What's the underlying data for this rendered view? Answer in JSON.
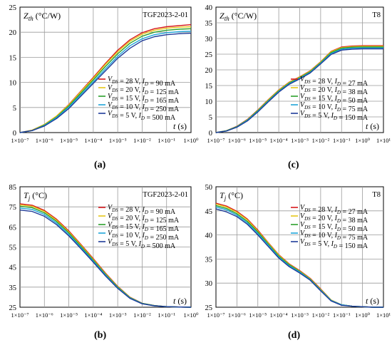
{
  "chart_data": [
    {
      "panel": "(a)",
      "type": "line",
      "tag": "TGF2023-2-01",
      "y_label": {
        "main": "Z",
        "sub": "th",
        "unit": " (°C/W)"
      },
      "x_label": "t (s)",
      "x_scale": "log",
      "xlim_exp": [
        -7,
        0
      ],
      "x_ticks": [
        "1×10⁻⁷",
        "1×10⁻⁶",
        "1×10⁻⁵",
        "1×10⁻⁴",
        "1×10⁻³",
        "1×10⁻²",
        "1×10⁻¹",
        "1×10⁰"
      ],
      "ylim": [
        0,
        25
      ],
      "y_ticks": [
        0,
        5,
        10,
        15,
        20,
        25
      ],
      "grid": true,
      "legend_position": "lower-right",
      "series": [
        {
          "legend": "V_DS = 28 V, I_D = 90 mA",
          "color": "#d7191c",
          "t": [
            -7,
            -6.5,
            -6,
            -5.5,
            -5,
            -4.5,
            -4,
            -3.5,
            -3,
            -2.5,
            -2,
            -1.5,
            -1,
            -0.5,
            0
          ],
          "y": [
            0,
            0.5,
            1.6,
            3.3,
            5.6,
            8.3,
            11.0,
            13.8,
            16.4,
            18.5,
            19.9,
            20.7,
            21.1,
            21.3,
            21.5
          ]
        },
        {
          "legend": "V_DS = 20 V, I_D = 125 mA",
          "color": "#e6c619",
          "t": [
            -7,
            -6.5,
            -6,
            -5.5,
            -5,
            -4.5,
            -4,
            -3.5,
            -3,
            -2.5,
            -2,
            -1.5,
            -1,
            -0.5,
            0
          ],
          "y": [
            0,
            0.5,
            1.6,
            3.3,
            5.5,
            8.2,
            10.8,
            13.6,
            16.1,
            18.2,
            19.6,
            20.4,
            20.8,
            21.0,
            21.1
          ]
        },
        {
          "legend": "V_DS = 15 V, I_D = 165 mA",
          "color": "#2ca02c",
          "t": [
            -7,
            -6.5,
            -6,
            -5.5,
            -5,
            -4.5,
            -4,
            -3.5,
            -3,
            -2.5,
            -2,
            -1.5,
            -1,
            -0.5,
            0
          ],
          "y": [
            0,
            0.4,
            1.5,
            3.1,
            5.3,
            7.9,
            10.5,
            13.2,
            15.7,
            17.8,
            19.2,
            20.0,
            20.4,
            20.6,
            20.7
          ]
        },
        {
          "legend": "V_DS = 10 V, I_D = 250 mA",
          "color": "#1fa5d8",
          "t": [
            -7,
            -6.5,
            -6,
            -5.5,
            -5,
            -4.5,
            -4,
            -3.5,
            -3,
            -2.5,
            -2,
            -1.5,
            -1,
            -0.5,
            0
          ],
          "y": [
            0,
            0.4,
            1.4,
            3.0,
            5.1,
            7.6,
            10.1,
            12.7,
            15.2,
            17.3,
            18.7,
            19.5,
            19.9,
            20.1,
            20.2
          ]
        },
        {
          "legend": "V_DS = 5 V, I_D = 500 mA",
          "color": "#1f3c99",
          "t": [
            -7,
            -6.5,
            -6,
            -5.5,
            -5,
            -4.5,
            -4,
            -3.5,
            -3,
            -2.5,
            -2,
            -1.5,
            -1,
            -0.5,
            0
          ],
          "y": [
            0,
            0.4,
            1.3,
            2.8,
            4.8,
            7.3,
            9.8,
            12.3,
            14.8,
            16.8,
            18.3,
            19.1,
            19.5,
            19.7,
            19.8
          ]
        }
      ]
    },
    {
      "panel": "(c)",
      "type": "line",
      "tag": "T8",
      "y_label": {
        "main": "Z",
        "sub": "th",
        "unit": " (°C/W)"
      },
      "x_label": "t (s)",
      "x_scale": "log",
      "xlim_exp": [
        -7,
        1
      ],
      "x_ticks": [
        "1×10⁻⁷",
        "1×10⁻⁶",
        "1×10⁻⁵",
        "1×10⁻⁴",
        "1×10⁻³",
        "1×10⁻²",
        "1×10⁻¹",
        "1×10⁰",
        "1×10¹"
      ],
      "ylim": [
        0,
        40
      ],
      "y_ticks": [
        0,
        5,
        10,
        15,
        20,
        25,
        30,
        35,
        40
      ],
      "grid": true,
      "legend_position": "lower-right",
      "series": [
        {
          "legend": "V_DS = 28 V, I_D = 27 mA",
          "color": "#d7191c",
          "t": [
            -7,
            -6.5,
            -6,
            -5.5,
            -5,
            -4.5,
            -4,
            -3.5,
            -3,
            -2.5,
            -2,
            -1.5,
            -1,
            -0.5,
            0,
            0.5,
            1
          ],
          "y": [
            0,
            0.6,
            2.0,
            4.2,
            7.2,
            10.5,
            13.6,
            16.1,
            17.8,
            19.7,
            22.6,
            25.9,
            27.3,
            27.6,
            27.7,
            27.7,
            27.7
          ]
        },
        {
          "legend": "V_DS = 20 V, I_D = 38 mA",
          "color": "#e6c619",
          "t": [
            -7,
            -6.5,
            -6,
            -5.5,
            -5,
            -4.5,
            -4,
            -3.5,
            -3,
            -2.5,
            -2,
            -1.5,
            -1,
            -0.5,
            0,
            0.5,
            1
          ],
          "y": [
            0,
            0.6,
            1.9,
            4.1,
            7.1,
            10.4,
            13.5,
            16.0,
            17.7,
            19.6,
            22.5,
            25.8,
            27.1,
            27.4,
            27.5,
            27.5,
            27.5
          ]
        },
        {
          "legend": "V_DS = 15 V, I_D = 50 mA",
          "color": "#2ca02c",
          "t": [
            -7,
            -6.5,
            -6,
            -5.5,
            -5,
            -4.5,
            -4,
            -3.5,
            -3,
            -2.5,
            -2,
            -1.5,
            -1,
            -0.5,
            0,
            0.5,
            1
          ],
          "y": [
            0,
            0.6,
            1.9,
            4.0,
            7.0,
            10.2,
            13.3,
            15.8,
            17.5,
            19.4,
            22.3,
            25.5,
            26.9,
            27.2,
            27.3,
            27.3,
            27.3
          ]
        },
        {
          "legend": "V_DS = 10 V, I_D = 75 mA",
          "color": "#1fa5d8",
          "t": [
            -7,
            -6.5,
            -6,
            -5.5,
            -5,
            -4.5,
            -4,
            -3.5,
            -3,
            -2.5,
            -2,
            -1.5,
            -1,
            -0.5,
            0,
            0.5,
            1
          ],
          "y": [
            0,
            0.5,
            1.8,
            3.9,
            6.8,
            10.0,
            13.1,
            15.6,
            17.3,
            19.2,
            22.1,
            25.2,
            26.6,
            26.9,
            27.0,
            27.0,
            27.0
          ]
        },
        {
          "legend": "V_DS = 5 V, I_D = 150 mA",
          "color": "#1f3c99",
          "t": [
            -7,
            -6.5,
            -6,
            -5.5,
            -5,
            -4.5,
            -4,
            -3.5,
            -3,
            -2.5,
            -2,
            -1.5,
            -1,
            -0.5,
            0,
            0.5,
            1
          ],
          "y": [
            0,
            0.5,
            1.7,
            3.7,
            6.6,
            9.8,
            12.9,
            15.4,
            17.1,
            19.0,
            21.9,
            24.9,
            26.3,
            26.6,
            26.7,
            26.7,
            26.7
          ]
        }
      ]
    },
    {
      "panel": "(b)",
      "type": "line",
      "tag": "TGF2023-2-01",
      "y_label": {
        "main": "T",
        "sub": "j",
        "unit": " (°C)"
      },
      "x_label": "t (s)",
      "x_scale": "log",
      "xlim_exp": [
        -7,
        0
      ],
      "x_ticks": [
        "1×10⁻⁷",
        "1×10⁻⁶",
        "1×10⁻⁵",
        "1×10⁻⁴",
        "1×10⁻³",
        "1×10⁻²",
        "1×10⁻¹",
        "1×10⁰"
      ],
      "ylim": [
        25,
        85
      ],
      "y_ticks": [
        25,
        35,
        45,
        55,
        65,
        75,
        85
      ],
      "grid": true,
      "legend_position": "upper-right",
      "series": [
        {
          "legend": "V_DS = 28 V, I_D = 90 mA",
          "color": "#d7191c",
          "t": [
            -7,
            -6.5,
            -6,
            -5.5,
            -5,
            -4.5,
            -4,
            -3.5,
            -3,
            -2.5,
            -2,
            -1.5,
            -1,
            -0.5,
            0
          ],
          "y": [
            76.5,
            75.8,
            73.2,
            68.8,
            63.0,
            56.2,
            49.2,
            42.0,
            35.4,
            30.0,
            27.0,
            25.8,
            25.3,
            25.1,
            25.0
          ]
        },
        {
          "legend": "V_DS = 20 V, I_D = 125 mA",
          "color": "#e6c619",
          "t": [
            -7,
            -6.5,
            -6,
            -5.5,
            -5,
            -4.5,
            -4,
            -3.5,
            -3,
            -2.5,
            -2,
            -1.5,
            -1,
            -0.5,
            0
          ],
          "y": [
            76.0,
            75.3,
            72.7,
            68.3,
            62.5,
            55.8,
            48.8,
            41.7,
            35.2,
            29.9,
            26.9,
            25.8,
            25.3,
            25.1,
            25.0
          ]
        },
        {
          "legend": "V_DS = 15 V, I_D = 165 mA",
          "color": "#2ca02c",
          "t": [
            -7,
            -6.5,
            -6,
            -5.5,
            -5,
            -4.5,
            -4,
            -3.5,
            -3,
            -2.5,
            -2,
            -1.5,
            -1,
            -0.5,
            0
          ],
          "y": [
            75.3,
            74.6,
            72.0,
            67.7,
            62.0,
            55.3,
            48.4,
            41.4,
            35.0,
            29.8,
            26.9,
            25.8,
            25.3,
            25.1,
            25.0
          ]
        },
        {
          "legend": "V_DS = 10 V, I_D = 250 mA",
          "color": "#1fa5d8",
          "t": [
            -7,
            -6.5,
            -6,
            -5.5,
            -5,
            -4.5,
            -4,
            -3.5,
            -3,
            -2.5,
            -2,
            -1.5,
            -1,
            -0.5,
            0
          ],
          "y": [
            74.4,
            73.7,
            71.2,
            66.9,
            61.2,
            54.7,
            47.9,
            41.0,
            34.7,
            29.6,
            26.8,
            25.7,
            25.3,
            25.1,
            25.0
          ]
        },
        {
          "legend": "V_DS = 5 V, I_D = 500 mA",
          "color": "#1f3c99",
          "t": [
            -7,
            -6.5,
            -6,
            -5.5,
            -5,
            -4.5,
            -4,
            -3.5,
            -3,
            -2.5,
            -2,
            -1.5,
            -1,
            -0.5,
            0
          ],
          "y": [
            73.4,
            72.7,
            70.3,
            66.1,
            60.5,
            54.1,
            47.4,
            40.6,
            34.4,
            29.4,
            26.7,
            25.7,
            25.3,
            25.1,
            25.0
          ]
        }
      ]
    },
    {
      "panel": "(d)",
      "type": "line",
      "tag": "T8",
      "y_label": {
        "main": "T",
        "sub": "j",
        "unit": " (°C)"
      },
      "x_label": "t (s)",
      "x_scale": "log",
      "xlim_exp": [
        -7,
        1
      ],
      "x_ticks": [
        "1×10⁻⁷",
        "1×10⁻⁶",
        "1×10⁻⁵",
        "1×10⁻⁴",
        "1×10⁻³",
        "1×10⁻²",
        "1×10⁻¹",
        "1×10⁰",
        "1×10¹"
      ],
      "ylim": [
        25,
        50
      ],
      "y_ticks": [
        25,
        30,
        35,
        40,
        45,
        50
      ],
      "grid": true,
      "legend_position": "upper-right",
      "series": [
        {
          "legend": "V_DS = 28 V, I_D = 27 mA",
          "color": "#d7191c",
          "t": [
            -7,
            -6.5,
            -6,
            -5.5,
            -5,
            -4.5,
            -4,
            -3.5,
            -3,
            -2.5,
            -2,
            -1.5,
            -1,
            -0.5,
            0,
            0.5,
            1
          ],
          "y": [
            46.6,
            46.0,
            44.9,
            43.3,
            41.0,
            38.4,
            35.9,
            34.0,
            32.6,
            31.0,
            28.8,
            26.5,
            25.5,
            25.2,
            25.1,
            25.0,
            25.0
          ]
        },
        {
          "legend": "V_DS = 20 V, I_D = 38 mA",
          "color": "#e6c619",
          "t": [
            -7,
            -6.5,
            -6,
            -5.5,
            -5,
            -4.5,
            -4,
            -3.5,
            -3,
            -2.5,
            -2,
            -1.5,
            -1,
            -0.5,
            0,
            0.5,
            1
          ],
          "y": [
            46.4,
            45.8,
            44.7,
            43.1,
            40.8,
            38.3,
            35.8,
            33.9,
            32.5,
            30.9,
            28.7,
            26.5,
            25.5,
            25.2,
            25.1,
            25.0,
            25.0
          ]
        },
        {
          "legend": "V_DS = 15 V, I_D = 50 mA",
          "color": "#2ca02c",
          "t": [
            -7,
            -6.5,
            -6,
            -5.5,
            -5,
            -4.5,
            -4,
            -3.5,
            -3,
            -2.5,
            -2,
            -1.5,
            -1,
            -0.5,
            0,
            0.5,
            1
          ],
          "y": [
            46.1,
            45.5,
            44.4,
            42.8,
            40.6,
            38.1,
            35.6,
            33.8,
            32.4,
            30.8,
            28.6,
            26.4,
            25.5,
            25.2,
            25.1,
            25.0,
            25.0
          ]
        },
        {
          "legend": "V_DS = 10 V, I_D = 75 mA",
          "color": "#1fa5d8",
          "t": [
            -7,
            -6.5,
            -6,
            -5.5,
            -5,
            -4.5,
            -4,
            -3.5,
            -3,
            -2.5,
            -2,
            -1.5,
            -1,
            -0.5,
            0,
            0.5,
            1
          ],
          "y": [
            45.8,
            45.2,
            44.1,
            42.5,
            40.3,
            37.9,
            35.4,
            33.6,
            32.3,
            30.7,
            28.5,
            26.4,
            25.5,
            25.2,
            25.1,
            25.0,
            25.0
          ]
        },
        {
          "legend": "V_DS = 5 V, I_D = 150 mA",
          "color": "#1f3c99",
          "t": [
            -7,
            -6.5,
            -6,
            -5.5,
            -5,
            -4.5,
            -4,
            -3.5,
            -3,
            -2.5,
            -2,
            -1.5,
            -1,
            -0.5,
            0,
            0.5,
            1
          ],
          "y": [
            45.4,
            44.8,
            43.8,
            42.2,
            40.0,
            37.6,
            35.2,
            33.4,
            32.1,
            30.6,
            28.4,
            26.3,
            25.4,
            25.2,
            25.1,
            25.0,
            25.0
          ]
        }
      ]
    }
  ]
}
